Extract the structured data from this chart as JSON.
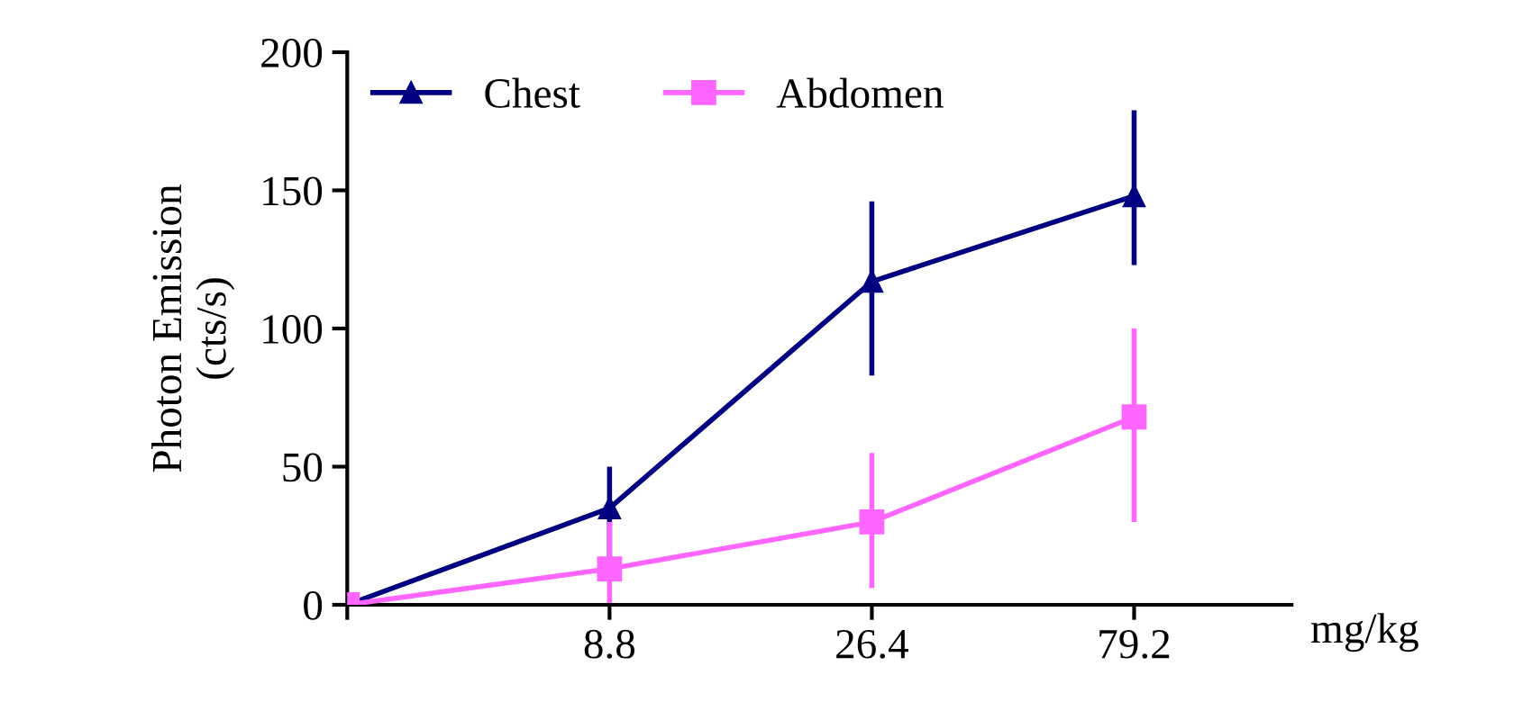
{
  "chart_data": {
    "type": "line",
    "ylabel": "Photon Emission\n(cts/s)",
    "xlabel": "mg/kg",
    "categories": [
      null,
      "8.8",
      "26.4",
      "79.2"
    ],
    "series": [
      {
        "name": "Chest",
        "color": "#000080",
        "marker": "triangle",
        "values": [
          0,
          35,
          117,
          148
        ],
        "errors": [
          null,
          [
            17,
            50
          ],
          [
            83,
            146
          ],
          [
            123,
            179
          ]
        ]
      },
      {
        "name": "Abdomen",
        "color": "#ff66ff",
        "marker": "square",
        "values": [
          0,
          13,
          30,
          68
        ],
        "errors": [
          null,
          [
            0,
            30
          ],
          [
            6,
            55
          ],
          [
            30,
            100
          ]
        ]
      }
    ],
    "ylim": [
      0,
      200
    ],
    "yticks": [
      0,
      50,
      100,
      150,
      200
    ],
    "grid": false,
    "legend": "top left",
    "line_style": "solid"
  }
}
